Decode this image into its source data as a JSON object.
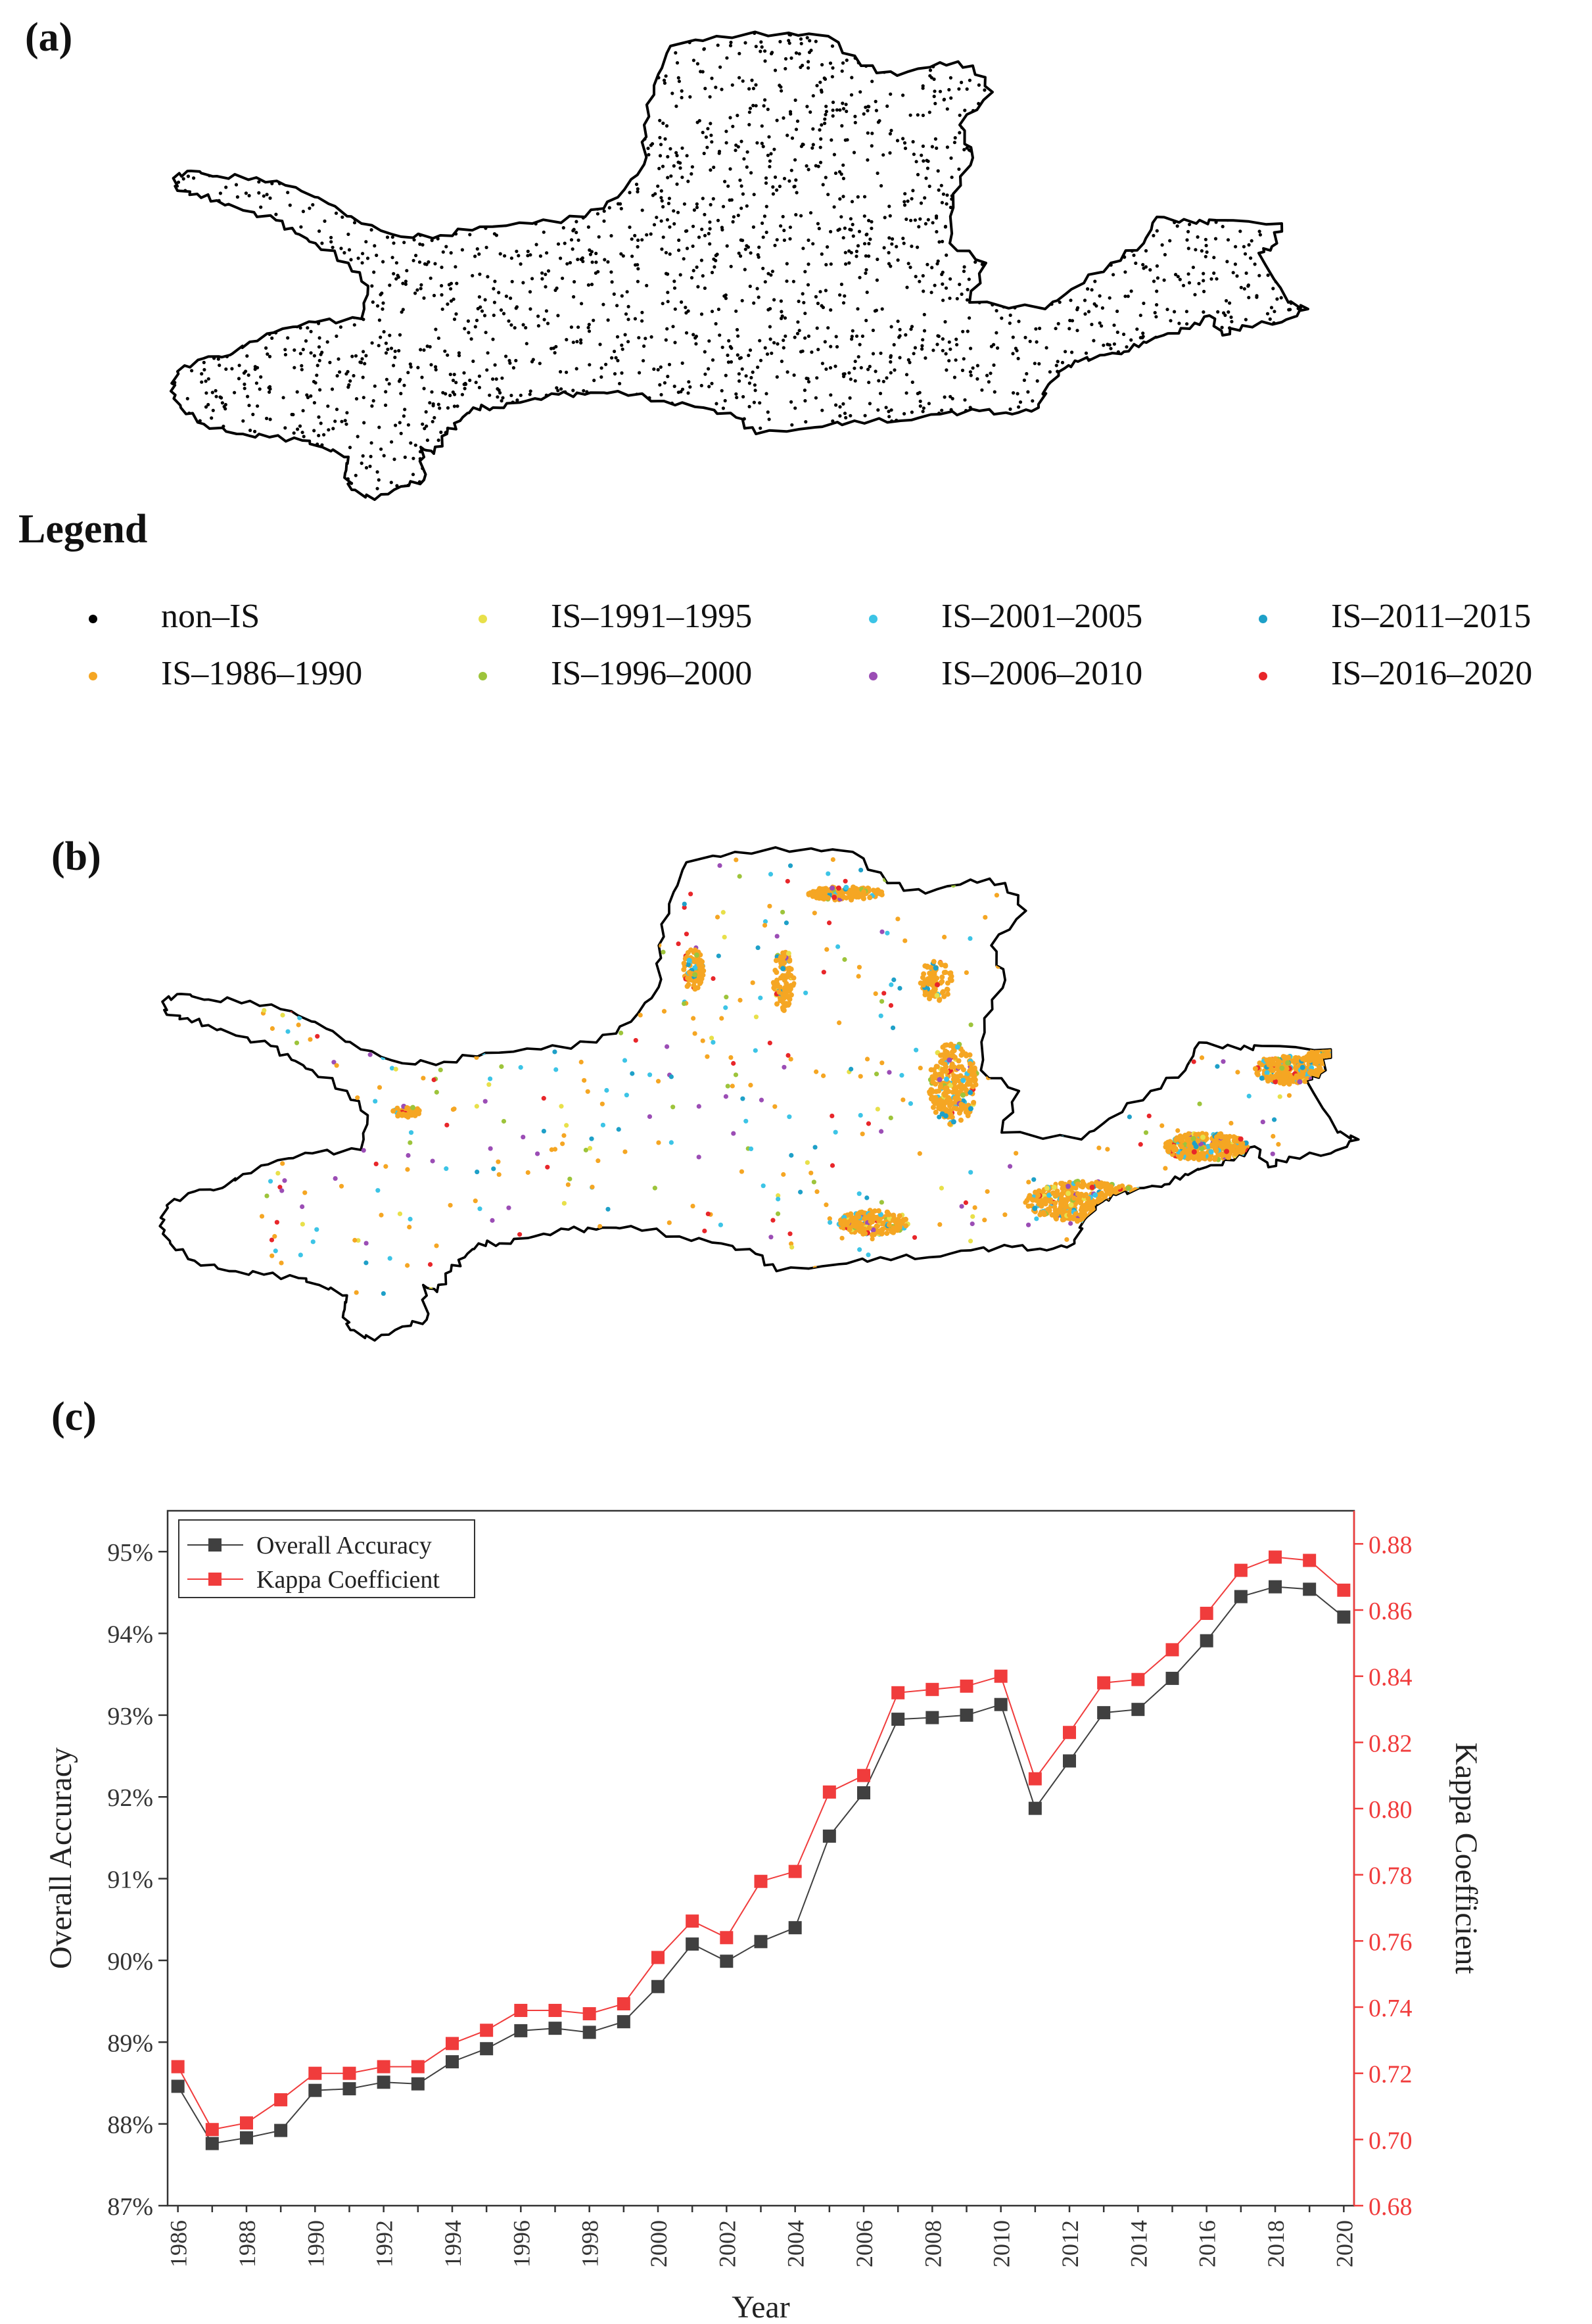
{
  "panels": {
    "a": "(a)",
    "b": "(b)",
    "c": "(c)"
  },
  "legend": {
    "title": "Legend",
    "items": [
      {
        "label": "non–IS",
        "color": "#000000"
      },
      {
        "label": "IS–1986–1990",
        "color": "#f5a623"
      },
      {
        "label": "IS–1991–1995",
        "color": "#e8e04a"
      },
      {
        "label": "IS–1996–2000",
        "color": "#9dc43b"
      },
      {
        "label": "IS–2001–2005",
        "color": "#3cc4e6"
      },
      {
        "label": "IS–2006–2010",
        "color": "#9b4db5"
      },
      {
        "label": "IS–2011–2015",
        "color": "#1ea0c8"
      },
      {
        "label": "IS–2016–2020",
        "color": "#e8262a"
      }
    ]
  },
  "chart_data": {
    "type": "line",
    "xlabel": "Year",
    "ylabel": "Overall Accuracy",
    "y2label": "Kappa Coefficient",
    "x": [
      1986,
      1987,
      1988,
      1989,
      1990,
      1991,
      1992,
      1993,
      1994,
      1995,
      1996,
      1997,
      1998,
      1999,
      2000,
      2001,
      2002,
      2003,
      2004,
      2005,
      2006,
      2007,
      2008,
      2009,
      2010,
      2011,
      2012,
      2013,
      2014,
      2015,
      2016,
      2017,
      2018,
      2019,
      2020
    ],
    "xticks": [
      "1986",
      "1988",
      "1990",
      "1992",
      "1994",
      "1996",
      "1998",
      "2000",
      "2002",
      "2004",
      "2006",
      "2008",
      "2010",
      "2012",
      "2014",
      "2016",
      "2018",
      "2020"
    ],
    "ylim": [
      87,
      95.5
    ],
    "yticks": [
      "87%",
      "88%",
      "89%",
      "90%",
      "91%",
      "92%",
      "93%",
      "94%",
      "95%"
    ],
    "y2lim": [
      0.68,
      0.89
    ],
    "y2ticks": [
      "0.68",
      "0.70",
      "0.72",
      "0.74",
      "0.76",
      "0.78",
      "0.80",
      "0.82",
      "0.84",
      "0.86",
      "0.88"
    ],
    "legend_position": "top-left",
    "grid": false,
    "series": [
      {
        "name": "Overall Accuracy",
        "axis": "left",
        "color": "#404040",
        "values": [
          88.46,
          87.76,
          87.83,
          87.92,
          88.41,
          88.43,
          88.51,
          88.49,
          88.76,
          88.92,
          89.14,
          89.17,
          89.12,
          89.25,
          89.68,
          90.2,
          89.99,
          90.23,
          90.4,
          91.52,
          92.05,
          92.95,
          92.97,
          93.0,
          93.13,
          91.86,
          92.44,
          93.03,
          93.07,
          93.45,
          93.91,
          94.45,
          94.57,
          94.54,
          94.2
        ],
        "marker": "square"
      },
      {
        "name": "Kappa Coefficient",
        "axis": "right",
        "color": "#f03c3c",
        "values": [
          0.722,
          0.703,
          0.705,
          0.712,
          0.72,
          0.72,
          0.722,
          0.722,
          0.729,
          0.733,
          0.739,
          0.739,
          0.738,
          0.741,
          0.755,
          0.766,
          0.761,
          0.778,
          0.781,
          0.805,
          0.81,
          0.835,
          0.836,
          0.837,
          0.84,
          0.809,
          0.823,
          0.838,
          0.839,
          0.848,
          0.859,
          0.872,
          0.876,
          0.875,
          0.866
        ],
        "marker": "square"
      }
    ]
  }
}
